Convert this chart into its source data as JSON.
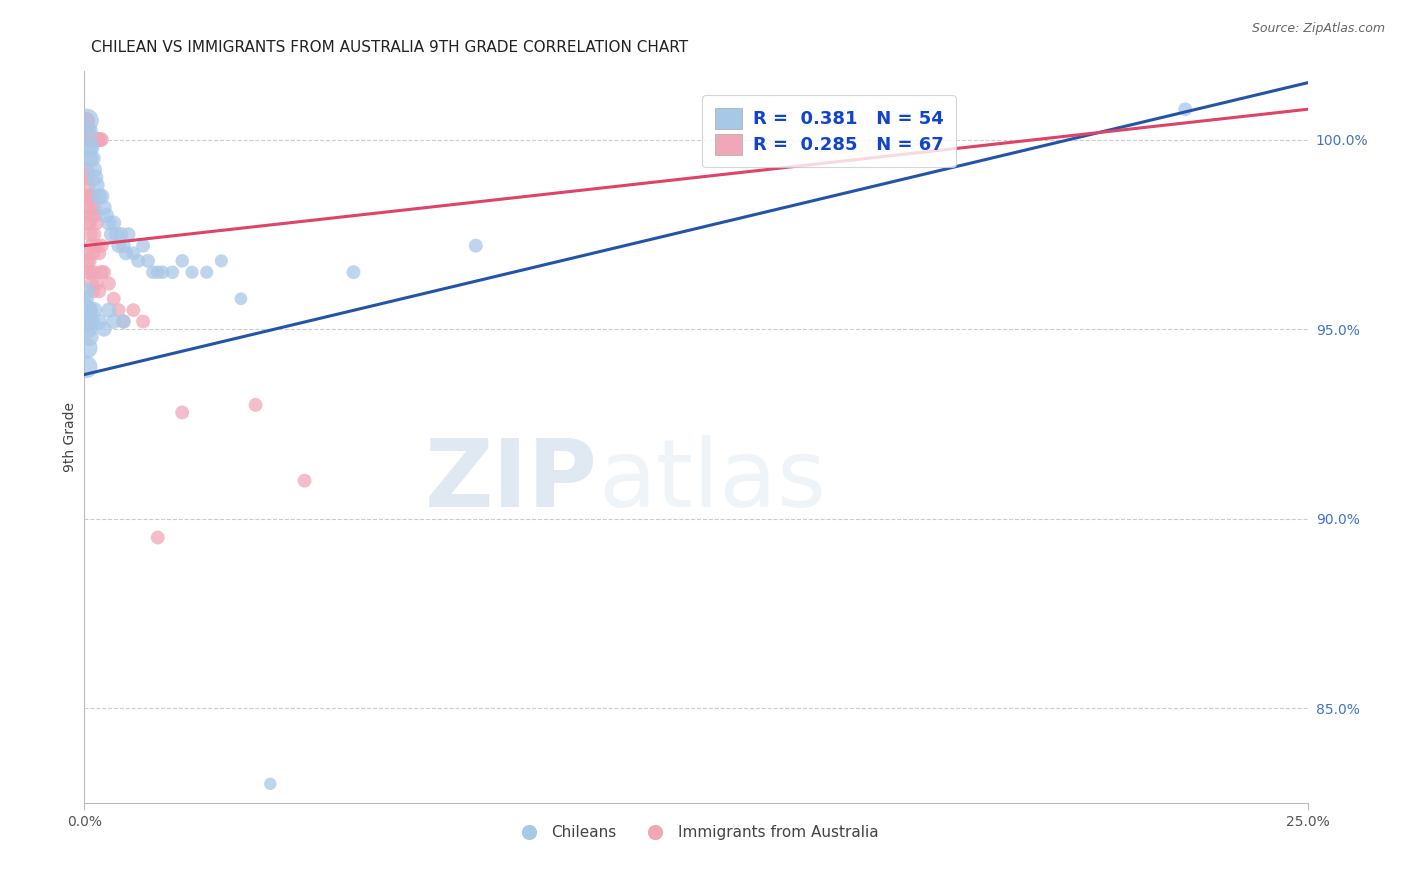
{
  "title": "CHILEAN VS IMMIGRANTS FROM AUSTRALIA 9TH GRADE CORRELATION CHART",
  "source": "Source: ZipAtlas.com",
  "ylabel": "9th Grade",
  "right_yticks": [
    85.0,
    90.0,
    95.0,
    100.0
  ],
  "right_ytick_labels": [
    "85.0%",
    "90.0%",
    "95.0%",
    "100.0%"
  ],
  "xmin": 0.0,
  "xmax": 25.0,
  "ymin": 82.5,
  "ymax": 101.8,
  "blue_R": 0.381,
  "blue_N": 54,
  "pink_R": 0.285,
  "pink_N": 67,
  "blue_color": "#A8C8E8",
  "pink_color": "#F0A8B8",
  "blue_line_color": "#2255AA",
  "pink_line_color": "#DD4466",
  "watermark_zip": "ZIP",
  "watermark_atlas": "atlas",
  "legend_label_blue": "Chileans",
  "legend_label_pink": "Immigrants from Australia",
  "blue_line_x0": 0.0,
  "blue_line_y0": 93.8,
  "blue_line_x1": 25.0,
  "blue_line_y1": 101.5,
  "pink_line_x0": 0.0,
  "pink_line_y0": 97.2,
  "pink_line_x1": 25.0,
  "pink_line_y1": 100.8,
  "blue_dots": [
    [
      0.05,
      100.5
    ],
    [
      0.07,
      100.2
    ],
    [
      0.09,
      99.8
    ],
    [
      0.11,
      99.5
    ],
    [
      0.13,
      99.8
    ],
    [
      0.16,
      99.5
    ],
    [
      0.19,
      99.2
    ],
    [
      0.22,
      99.0
    ],
    [
      0.25,
      98.8
    ],
    [
      0.3,
      98.5
    ],
    [
      0.35,
      98.5
    ],
    [
      0.4,
      98.2
    ],
    [
      0.45,
      98.0
    ],
    [
      0.5,
      97.8
    ],
    [
      0.55,
      97.5
    ],
    [
      0.6,
      97.8
    ],
    [
      0.65,
      97.5
    ],
    [
      0.7,
      97.2
    ],
    [
      0.75,
      97.5
    ],
    [
      0.8,
      97.2
    ],
    [
      0.85,
      97.0
    ],
    [
      0.9,
      97.5
    ],
    [
      1.0,
      97.0
    ],
    [
      1.1,
      96.8
    ],
    [
      1.2,
      97.2
    ],
    [
      1.3,
      96.8
    ],
    [
      1.4,
      96.5
    ],
    [
      1.5,
      96.5
    ],
    [
      1.6,
      96.5
    ],
    [
      1.8,
      96.5
    ],
    [
      2.0,
      96.8
    ],
    [
      2.2,
      96.5
    ],
    [
      2.5,
      96.5
    ],
    [
      2.8,
      96.8
    ],
    [
      3.2,
      95.8
    ],
    [
      0.03,
      95.5
    ],
    [
      0.06,
      95.2
    ],
    [
      0.08,
      95.0
    ],
    [
      0.1,
      95.5
    ],
    [
      0.15,
      95.2
    ],
    [
      0.2,
      95.5
    ],
    [
      0.3,
      95.2
    ],
    [
      0.4,
      95.0
    ],
    [
      0.5,
      95.5
    ],
    [
      0.6,
      95.2
    ],
    [
      0.8,
      95.2
    ],
    [
      5.5,
      96.5
    ],
    [
      8.0,
      97.2
    ],
    [
      0.04,
      94.0
    ],
    [
      0.06,
      94.5
    ],
    [
      0.1,
      94.8
    ],
    [
      22.5,
      100.8
    ],
    [
      3.8,
      83.0
    ],
    [
      0.02,
      95.8
    ],
    [
      0.05,
      96.0
    ]
  ],
  "blue_dot_sizes": [
    300,
    220,
    180,
    160,
    160,
    150,
    145,
    140,
    135,
    130,
    130,
    125,
    120,
    120,
    115,
    115,
    115,
    110,
    110,
    110,
    105,
    105,
    100,
    100,
    100,
    100,
    95,
    95,
    95,
    95,
    95,
    90,
    90,
    90,
    85,
    280,
    200,
    170,
    160,
    150,
    140,
    130,
    120,
    120,
    115,
    110,
    100,
    100,
    260,
    220,
    180,
    100,
    80,
    150,
    140
  ],
  "pink_dots": [
    [
      0.02,
      100.5
    ],
    [
      0.03,
      100.3
    ],
    [
      0.04,
      100.5
    ],
    [
      0.05,
      100.5
    ],
    [
      0.06,
      100.3
    ],
    [
      0.07,
      100.2
    ],
    [
      0.08,
      100.0
    ],
    [
      0.09,
      100.0
    ],
    [
      0.1,
      100.0
    ],
    [
      0.11,
      100.0
    ],
    [
      0.12,
      100.0
    ],
    [
      0.13,
      100.0
    ],
    [
      0.14,
      100.0
    ],
    [
      0.15,
      100.0
    ],
    [
      0.16,
      100.0
    ],
    [
      0.18,
      100.0
    ],
    [
      0.2,
      100.0
    ],
    [
      0.22,
      100.0
    ],
    [
      0.25,
      100.0
    ],
    [
      0.28,
      100.0
    ],
    [
      0.3,
      100.0
    ],
    [
      0.32,
      100.0
    ],
    [
      0.35,
      100.0
    ],
    [
      0.03,
      99.2
    ],
    [
      0.05,
      99.0
    ],
    [
      0.07,
      98.8
    ],
    [
      0.09,
      98.5
    ],
    [
      0.11,
      98.5
    ],
    [
      0.13,
      98.2
    ],
    [
      0.15,
      98.0
    ],
    [
      0.17,
      98.5
    ],
    [
      0.2,
      98.2
    ],
    [
      0.22,
      98.0
    ],
    [
      0.25,
      97.8
    ],
    [
      0.04,
      98.5
    ],
    [
      0.06,
      98.2
    ],
    [
      0.08,
      97.8
    ],
    [
      0.1,
      97.8
    ],
    [
      0.12,
      97.5
    ],
    [
      0.15,
      97.2
    ],
    [
      0.18,
      97.0
    ],
    [
      0.2,
      97.5
    ],
    [
      0.25,
      97.2
    ],
    [
      0.3,
      97.0
    ],
    [
      0.35,
      97.2
    ],
    [
      0.04,
      97.0
    ],
    [
      0.06,
      96.8
    ],
    [
      0.08,
      96.5
    ],
    [
      0.1,
      96.8
    ],
    [
      0.12,
      96.5
    ],
    [
      0.15,
      96.2
    ],
    [
      0.18,
      96.0
    ],
    [
      0.2,
      96.5
    ],
    [
      0.25,
      96.2
    ],
    [
      0.3,
      96.0
    ],
    [
      0.35,
      96.5
    ],
    [
      0.4,
      96.5
    ],
    [
      0.5,
      96.2
    ],
    [
      0.6,
      95.8
    ],
    [
      0.7,
      95.5
    ],
    [
      0.8,
      95.2
    ],
    [
      1.0,
      95.5
    ],
    [
      1.2,
      95.2
    ],
    [
      2.0,
      92.8
    ],
    [
      1.5,
      89.5
    ],
    [
      3.5,
      93.0
    ],
    [
      4.5,
      91.0
    ]
  ],
  "pink_dot_sizes": [
    160,
    150,
    145,
    145,
    140,
    135,
    130,
    130,
    130,
    125,
    125,
    125,
    120,
    120,
    120,
    120,
    115,
    115,
    115,
    115,
    110,
    110,
    110,
    140,
    135,
    130,
    125,
    120,
    120,
    115,
    115,
    110,
    110,
    105,
    130,
    125,
    120,
    115,
    115,
    110,
    110,
    108,
    105,
    105,
    105,
    120,
    118,
    115,
    112,
    110,
    108,
    105,
    108,
    105,
    105,
    108,
    105,
    102,
    100,
    100,
    100,
    100,
    100,
    100,
    100,
    100,
    100
  ]
}
